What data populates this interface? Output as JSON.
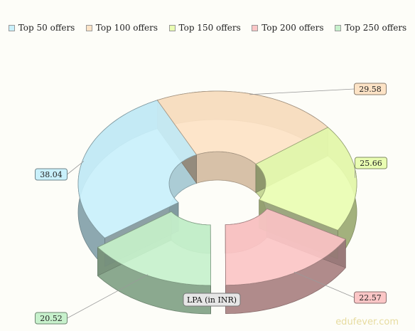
{
  "chart_data": {
    "type": "pie",
    "style": "3d-doughnut",
    "categories": [
      "Top 50 offers",
      "Top 100 offers",
      "Top 150 offers",
      "Top 200 offers",
      "Top 250 offers"
    ],
    "values": [
      38.04,
      29.58,
      25.66,
      22.57,
      20.52
    ],
    "value_labels": [
      "38.04",
      "29.58",
      "25.66",
      "22.57",
      "20.52"
    ],
    "colors": [
      "#c9f0fb",
      "#fde3c6",
      "#e9fdb2",
      "#fbc6c6",
      "#c7f1cc"
    ],
    "exploded": [
      false,
      false,
      false,
      true,
      true
    ],
    "center_label": "LPA (in INR)",
    "legend_position": "top"
  },
  "watermark": "edufever.com"
}
